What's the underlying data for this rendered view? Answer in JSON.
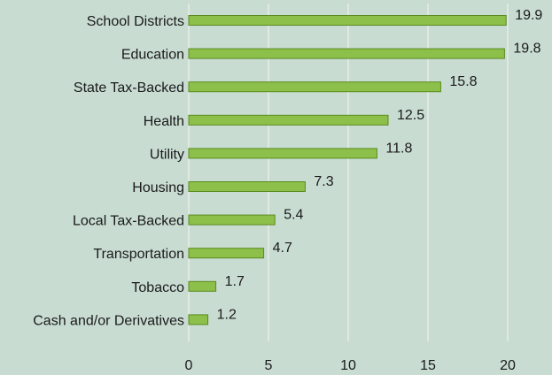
{
  "chart_data": {
    "type": "bar",
    "orientation": "horizontal",
    "categories": [
      "School Districts",
      "Education",
      "State Tax-Backed",
      "Health",
      "Utility",
      "Housing",
      "Local Tax-Backed",
      "Transportation",
      "Tobacco",
      "Cash and/or Derivatives"
    ],
    "values": [
      19.9,
      19.8,
      15.8,
      12.5,
      11.8,
      7.3,
      5.4,
      4.7,
      1.7,
      1.2
    ],
    "data_labels": [
      "19.9",
      "19.8",
      "15.8",
      "12.5",
      "11.8",
      "7.3",
      "5.4",
      "4.7",
      "1.7",
      "1.2"
    ],
    "xlim": [
      0,
      22.5
    ],
    "xticks": [
      0,
      5,
      10,
      15,
      20
    ],
    "xtick_labels": [
      "0",
      "5",
      "10",
      "15",
      "20"
    ],
    "grid": "vertical",
    "title": "",
    "xlabel": "",
    "ylabel": "",
    "colors": {
      "background": "#c8dcd2",
      "bar_fill": "#8cc04a",
      "bar_stroke": "#5a8a1e",
      "grid": "#e8ece8",
      "text": "#1a1a1a"
    }
  }
}
